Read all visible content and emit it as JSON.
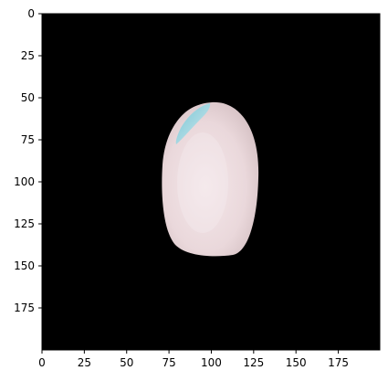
{
  "figure": {
    "image_description_name": "rice-grain-image",
    "colors": {
      "background": "#000000",
      "grain": "#ead8db",
      "grain_highlight": "#f4e7ea",
      "tip_tint": "#8fd3de",
      "axis": "#000000",
      "page": "#ffffff"
    }
  },
  "axes": {
    "x_ticks": [
      "0",
      "25",
      "50",
      "75",
      "100",
      "125",
      "150",
      "175"
    ],
    "y_ticks": [
      "0",
      "25",
      "50",
      "75",
      "100",
      "125",
      "150",
      "175"
    ],
    "x_range": [
      0,
      200
    ],
    "y_range": [
      0,
      200
    ]
  }
}
